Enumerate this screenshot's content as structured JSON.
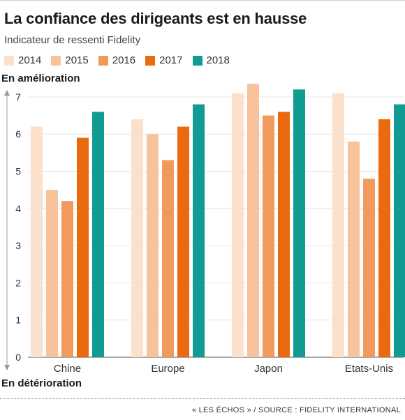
{
  "title": "La confiance des dirigeants est en hausse",
  "subtitle": "Indicateur de ressenti Fidelity",
  "axis_top_label": "En amélioration",
  "axis_bottom_label": "En détérioration",
  "source": "« LES ÉCHOS » / SOURCE : FIDELITY INTERNATIONAL",
  "chart_data": {
    "type": "bar",
    "title": "La confiance des dirigeants est en hausse",
    "subtitle": "Indicateur de ressenti Fidelity",
    "categories": [
      "Chine",
      "Europe",
      "Japon",
      "Etats-Unis"
    ],
    "series": [
      {
        "name": "2014",
        "color": "#fbe0cc",
        "values": [
          6.2,
          6.4,
          7.1,
          7.1
        ]
      },
      {
        "name": "2015",
        "color": "#f8c39b",
        "values": [
          4.5,
          6.0,
          7.4,
          5.8
        ]
      },
      {
        "name": "2016",
        "color": "#f19a5b",
        "values": [
          4.2,
          5.3,
          6.5,
          4.8
        ]
      },
      {
        "name": "2017",
        "color": "#ea6a10",
        "values": [
          5.9,
          6.2,
          6.6,
          6.4
        ]
      },
      {
        "name": "2018",
        "color": "#119c93",
        "values": [
          6.6,
          6.8,
          7.2,
          6.8
        ]
      }
    ],
    "yticks": [
      0,
      1,
      2,
      3,
      4,
      5,
      6,
      7
    ],
    "ylim": [
      0,
      7.5
    ],
    "legend_position": "top",
    "grid": true
  }
}
